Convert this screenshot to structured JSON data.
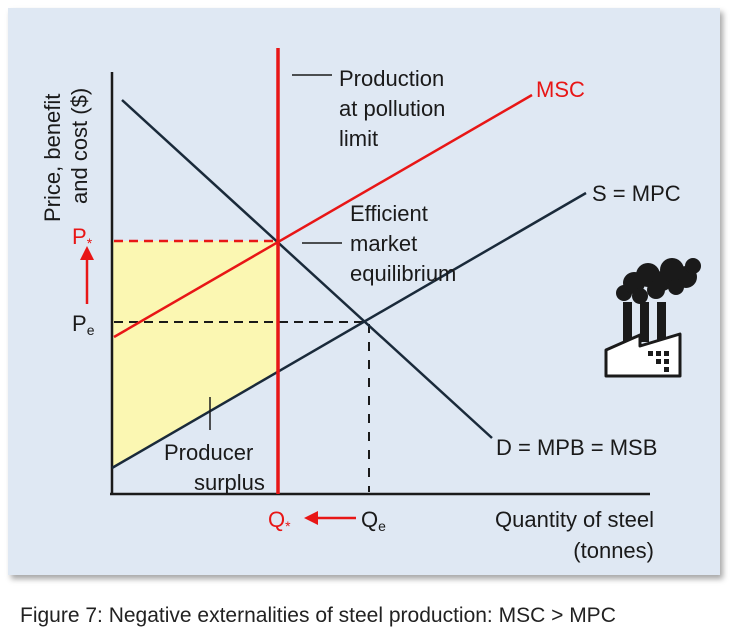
{
  "colors": {
    "panel_bg": "#dfe8f3",
    "red": "#e81616",
    "ink": "#1a1a1a",
    "surplus_fill": "#fbf7b2"
  },
  "labels": {
    "y_axis_line1": "Price, benefit",
    "y_axis_line2": "and cost ($)",
    "x_axis_line1": "Quantity of steel",
    "x_axis_line2": "(tonnes)",
    "msc": "MSC",
    "supply": "S = MPC",
    "demand": "D = MPB = MSB",
    "pollution_line1": "Production",
    "pollution_line2": "at pollution",
    "pollution_line3": "limit",
    "efficient_line1": "Efficient",
    "efficient_line2": "market",
    "efficient_line3": "equilibrium",
    "producer_line1": "Producer",
    "producer_line2": "surplus",
    "p_star": "P",
    "p_e": "P",
    "q_star": "Q",
    "q_e": "Q",
    "star_sub": "*",
    "e_sub": "e"
  },
  "icons": {
    "factory": "factory-icon"
  },
  "caption": "Figure 7: Negative externalities of steel production: MSC > MPC"
}
